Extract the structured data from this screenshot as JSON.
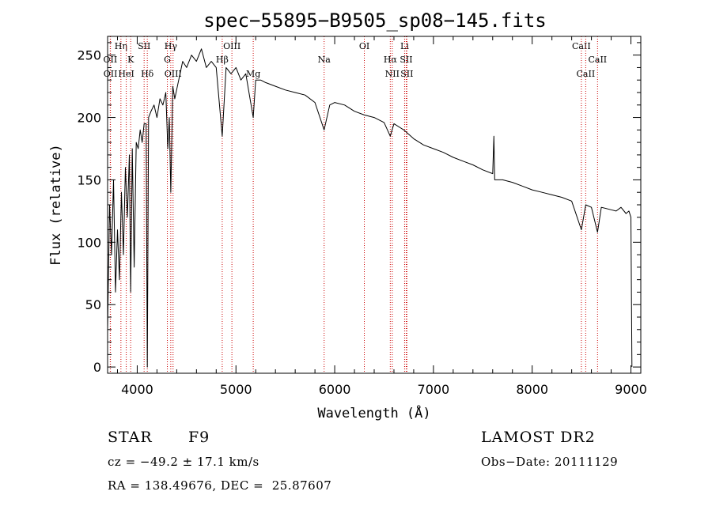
{
  "chart_data": {
    "type": "line",
    "title": "spec−55895−B9505_sp08−145.fits",
    "xlabel": "Wavelength (Å)",
    "ylabel": "Flux (relative)",
    "xlim": [
      3700,
      9100
    ],
    "ylim": [
      -5,
      265
    ],
    "x_ticks": [
      4000,
      5000,
      6000,
      7000,
      8000,
      9000
    ],
    "y_ticks": [
      0,
      50,
      100,
      150,
      200,
      250
    ],
    "grid": false,
    "line_color": "#000000",
    "marker_line_color": "#cc0000",
    "series": [
      {
        "x": [
          3700,
          3720,
          3740,
          3760,
          3780,
          3800,
          3820,
          3840,
          3860,
          3880,
          3900,
          3920,
          3934,
          3950,
          3969,
          3990,
          4010,
          4030,
          4050,
          4070,
          4090,
          4102,
          4115,
          4140,
          4170,
          4200,
          4230,
          4260,
          4290,
          4310,
          4325,
          4340,
          4360,
          4380,
          4420,
          4460,
          4500,
          4550,
          4600,
          4650,
          4700,
          4750,
          4800,
          4861,
          4900,
          4950,
          5000,
          5050,
          5100,
          5175,
          5200,
          5250,
          5300,
          5400,
          5500,
          5600,
          5700,
          5800,
          5893,
          5950,
          6000,
          6100,
          6200,
          6300,
          6400,
          6500,
          6563,
          6600,
          6700,
          6800,
          6900,
          7000,
          7100,
          7200,
          7300,
          7400,
          7500,
          7600,
          7612,
          7620,
          7700,
          7800,
          7900,
          8000,
          8100,
          8200,
          8300,
          8400,
          8498,
          8542,
          8600,
          8662,
          8700,
          8800,
          8850,
          8900,
          8950,
          8980,
          9000,
          9010
        ],
        "y": [
          30,
          130,
          90,
          150,
          60,
          110,
          70,
          140,
          90,
          160,
          120,
          170,
          60,
          175,
          80,
          180,
          175,
          190,
          180,
          195,
          195,
          0,
          200,
          205,
          210,
          200,
          215,
          210,
          220,
          175,
          200,
          140,
          225,
          215,
          230,
          245,
          240,
          250,
          245,
          255,
          240,
          245,
          240,
          185,
          240,
          235,
          240,
          230,
          235,
          200,
          230,
          230,
          228,
          225,
          222,
          220,
          218,
          212,
          190,
          210,
          212,
          210,
          205,
          202,
          200,
          196,
          185,
          195,
          190,
          183,
          178,
          175,
          172,
          168,
          165,
          162,
          158,
          155,
          185,
          150,
          150,
          148,
          145,
          142,
          140,
          138,
          136,
          133,
          110,
          130,
          128,
          108,
          128,
          126,
          125,
          128,
          123,
          125,
          120,
          0
        ]
      }
    ],
    "line_markers": [
      {
        "label": "OII",
        "x": 3727,
        "row": 2
      },
      {
        "label": "OII",
        "x": 3729,
        "row": 3
      },
      {
        "label": "Hη",
        "x": 3835,
        "row": 1
      },
      {
        "label": "K",
        "x": 3934,
        "row": 2
      },
      {
        "label": "HeI",
        "x": 3889,
        "row": 3
      },
      {
        "label": "SII",
        "x": 4070,
        "row": 1
      },
      {
        "label": "Hδ",
        "x": 4102,
        "row": 3
      },
      {
        "label": "Hγ",
        "x": 4340,
        "row": 1
      },
      {
        "label": "G",
        "x": 4305,
        "row": 2
      },
      {
        "label": "OIII",
        "x": 4363,
        "row": 3
      },
      {
        "label": "OIII",
        "x": 4959,
        "row": 1
      },
      {
        "label": "Hβ",
        "x": 4861,
        "row": 2
      },
      {
        "label": "Mg",
        "x": 5175,
        "row": 3
      },
      {
        "label": "Na",
        "x": 5893,
        "row": 2
      },
      {
        "label": "OI",
        "x": 6300,
        "row": 1
      },
      {
        "label": "Li",
        "x": 6708,
        "row": 1
      },
      {
        "label": "Hα",
        "x": 6563,
        "row": 2
      },
      {
        "label": "SII",
        "x": 6724,
        "row": 2
      },
      {
        "label": "NII",
        "x": 6583,
        "row": 3
      },
      {
        "label": "SII",
        "x": 6731,
        "row": 3
      },
      {
        "label": "CaII",
        "x": 8498,
        "row": 1
      },
      {
        "label": "CaII",
        "x": 8662,
        "row": 2
      },
      {
        "label": "CaII",
        "x": 8542,
        "row": 3
      }
    ]
  },
  "info": {
    "class_label": "STAR",
    "subclass": "F9",
    "survey": "LAMOST DR2",
    "redshift": "cz = −49.2 ± 17.1 km/s",
    "obs_date": "Obs−Date: 20111129",
    "coordinates": "RA = 138.49676, DEC =  25.87607"
  }
}
